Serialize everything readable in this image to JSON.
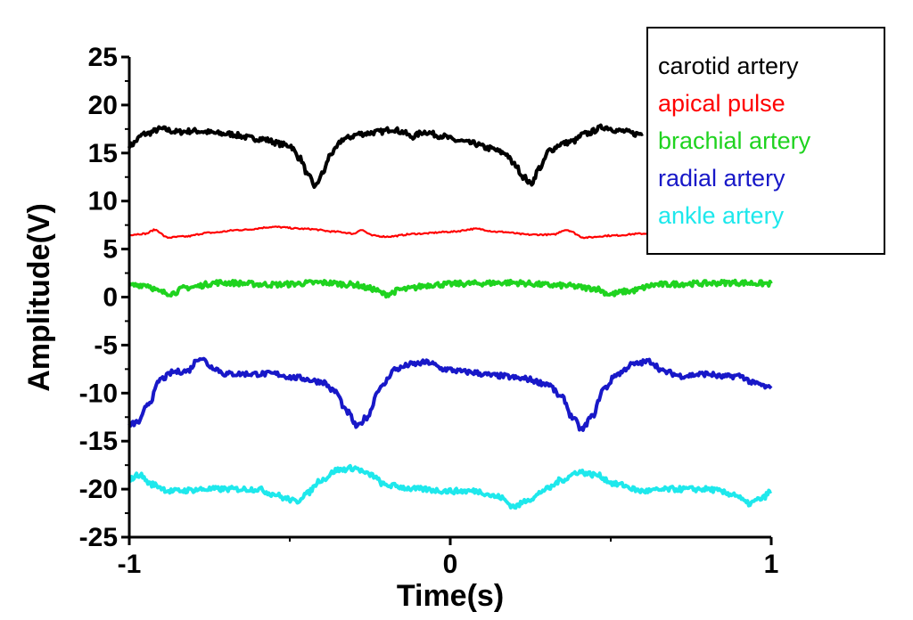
{
  "chart_data": {
    "type": "line",
    "xlabel": "Time(s)",
    "ylabel": "Amplitude(V)",
    "xlim": [
      -1,
      1
    ],
    "ylim": [
      -25,
      25
    ],
    "x_ticks": [
      "-1",
      "0",
      "1"
    ],
    "y_ticks": [
      "25",
      "20",
      "15",
      "10",
      "5",
      "0",
      "-5",
      "-10",
      "-15",
      "-20",
      "-25"
    ],
    "legend_position": "top-right",
    "grid": false,
    "series": [
      {
        "name": "carotid artery",
        "color": "#000000",
        "points": [
          [
            -1,
            15.8
          ],
          [
            -0.95,
            17.0
          ],
          [
            -0.9,
            17.5
          ],
          [
            -0.85,
            17.2
          ],
          [
            -0.8,
            17.3
          ],
          [
            -0.7,
            17.0
          ],
          [
            -0.6,
            16.5
          ],
          [
            -0.5,
            15.8
          ],
          [
            -0.47,
            14.5
          ],
          [
            -0.44,
            12.5
          ],
          [
            -0.42,
            11.5
          ],
          [
            -0.4,
            12.8
          ],
          [
            -0.37,
            15.0
          ],
          [
            -0.33,
            16.5
          ],
          [
            -0.28,
            17.0
          ],
          [
            -0.22,
            17.2
          ],
          [
            -0.18,
            17.5
          ],
          [
            -0.15,
            17.2
          ],
          [
            -0.12,
            16.7
          ],
          [
            -0.08,
            17.2
          ],
          [
            -0.03,
            16.8
          ],
          [
            0.02,
            16.3
          ],
          [
            0.07,
            16.0
          ],
          [
            0.12,
            15.5
          ],
          [
            0.17,
            15.0
          ],
          [
            0.2,
            13.8
          ],
          [
            0.23,
            12.5
          ],
          [
            0.25,
            11.8
          ],
          [
            0.28,
            13.5
          ],
          [
            0.31,
            15.3
          ],
          [
            0.35,
            16.0
          ],
          [
            0.38,
            16.2
          ],
          [
            0.42,
            17.0
          ],
          [
            0.48,
            17.7
          ],
          [
            0.53,
            17.3
          ],
          [
            0.58,
            17.0
          ],
          [
            0.6,
            17.0
          ]
        ]
      },
      {
        "name": "apical pulse",
        "color": "#ff0000",
        "points": [
          [
            -1,
            6.5
          ],
          [
            -0.95,
            6.6
          ],
          [
            -0.92,
            7.0
          ],
          [
            -0.88,
            6.2
          ],
          [
            -0.83,
            6.3
          ],
          [
            -0.75,
            6.7
          ],
          [
            -0.65,
            7.0
          ],
          [
            -0.55,
            7.3
          ],
          [
            -0.45,
            7.1
          ],
          [
            -0.35,
            6.8
          ],
          [
            -0.3,
            6.6
          ],
          [
            -0.28,
            7.0
          ],
          [
            -0.24,
            6.4
          ],
          [
            -0.2,
            6.3
          ],
          [
            -0.1,
            6.6
          ],
          [
            0.0,
            6.8
          ],
          [
            0.08,
            7.1
          ],
          [
            0.15,
            6.8
          ],
          [
            0.25,
            6.5
          ],
          [
            0.32,
            6.5
          ],
          [
            0.36,
            7.0
          ],
          [
            0.42,
            6.2
          ],
          [
            0.5,
            6.4
          ],
          [
            0.6,
            6.6
          ],
          [
            0.65,
            7.0
          ]
        ]
      },
      {
        "name": "brachial artery",
        "color": "#1fd31f",
        "points": [
          [
            -1,
            1.2
          ],
          [
            -0.95,
            1.3
          ],
          [
            -0.9,
            0.5
          ],
          [
            -0.87,
            0.4
          ],
          [
            -0.82,
            1.0
          ],
          [
            -0.72,
            1.5
          ],
          [
            -0.55,
            1.3
          ],
          [
            -0.4,
            1.5
          ],
          [
            -0.3,
            1.3
          ],
          [
            -0.25,
            0.9
          ],
          [
            -0.2,
            0.3
          ],
          [
            -0.15,
            0.8
          ],
          [
            -0.05,
            1.3
          ],
          [
            0.05,
            1.4
          ],
          [
            0.18,
            1.5
          ],
          [
            0.35,
            1.2
          ],
          [
            0.45,
            0.9
          ],
          [
            0.5,
            0.3
          ],
          [
            0.55,
            0.6
          ],
          [
            0.65,
            1.3
          ],
          [
            0.75,
            1.4
          ],
          [
            0.88,
            1.5
          ],
          [
            1,
            1.4
          ]
        ]
      },
      {
        "name": "radial artery",
        "color": "#1818c8",
        "points": [
          [
            -1,
            -13.3
          ],
          [
            -0.97,
            -13.0
          ],
          [
            -0.94,
            -11.0
          ],
          [
            -0.9,
            -8.5
          ],
          [
            -0.86,
            -7.8
          ],
          [
            -0.82,
            -7.7
          ],
          [
            -0.78,
            -6.3
          ],
          [
            -0.74,
            -7.3
          ],
          [
            -0.7,
            -8.0
          ],
          [
            -0.62,
            -8.0
          ],
          [
            -0.55,
            -8.0
          ],
          [
            -0.48,
            -8.4
          ],
          [
            -0.4,
            -8.8
          ],
          [
            -0.36,
            -9.8
          ],
          [
            -0.32,
            -12.0
          ],
          [
            -0.29,
            -13.5
          ],
          [
            -0.26,
            -12.5
          ],
          [
            -0.22,
            -9.5
          ],
          [
            -0.17,
            -7.5
          ],
          [
            -0.12,
            -7.0
          ],
          [
            -0.07,
            -6.8
          ],
          [
            -0.02,
            -7.5
          ],
          [
            0.05,
            -7.8
          ],
          [
            0.15,
            -8.2
          ],
          [
            0.23,
            -8.5
          ],
          [
            0.3,
            -9.0
          ],
          [
            0.35,
            -10.5
          ],
          [
            0.38,
            -12.5
          ],
          [
            0.41,
            -13.8
          ],
          [
            0.44,
            -12.5
          ],
          [
            0.48,
            -9.5
          ],
          [
            0.52,
            -8.0
          ],
          [
            0.57,
            -7.0
          ],
          [
            0.62,
            -6.7
          ],
          [
            0.67,
            -7.8
          ],
          [
            0.72,
            -8.2
          ],
          [
            0.8,
            -8.0
          ],
          [
            0.85,
            -8.3
          ],
          [
            0.9,
            -8.2
          ],
          [
            0.95,
            -9.0
          ],
          [
            1,
            -9.5
          ]
        ]
      },
      {
        "name": "ankle artery",
        "color": "#1ee8ec",
        "points": [
          [
            -1,
            -19.0
          ],
          [
            -0.97,
            -18.5
          ],
          [
            -0.93,
            -19.5
          ],
          [
            -0.87,
            -20.2
          ],
          [
            -0.75,
            -20.0
          ],
          [
            -0.6,
            -20.0
          ],
          [
            -0.55,
            -20.5
          ],
          [
            -0.51,
            -21.0
          ],
          [
            -0.48,
            -21.3
          ],
          [
            -0.45,
            -20.5
          ],
          [
            -0.4,
            -19.0
          ],
          [
            -0.35,
            -18.0
          ],
          [
            -0.3,
            -17.8
          ],
          [
            -0.25,
            -18.5
          ],
          [
            -0.2,
            -19.6
          ],
          [
            -0.1,
            -20.0
          ],
          [
            0.0,
            -20.2
          ],
          [
            0.08,
            -20.2
          ],
          [
            0.15,
            -20.8
          ],
          [
            0.2,
            -21.8
          ],
          [
            0.25,
            -21.0
          ],
          [
            0.3,
            -20.0
          ],
          [
            0.35,
            -19.0
          ],
          [
            0.4,
            -18.2
          ],
          [
            0.45,
            -18.5
          ],
          [
            0.52,
            -19.5
          ],
          [
            0.6,
            -20.2
          ],
          [
            0.7,
            -20.0
          ],
          [
            0.8,
            -20.0
          ],
          [
            0.88,
            -20.5
          ],
          [
            0.93,
            -21.5
          ],
          [
            0.97,
            -21.0
          ],
          [
            1,
            -20.2
          ]
        ]
      }
    ]
  }
}
